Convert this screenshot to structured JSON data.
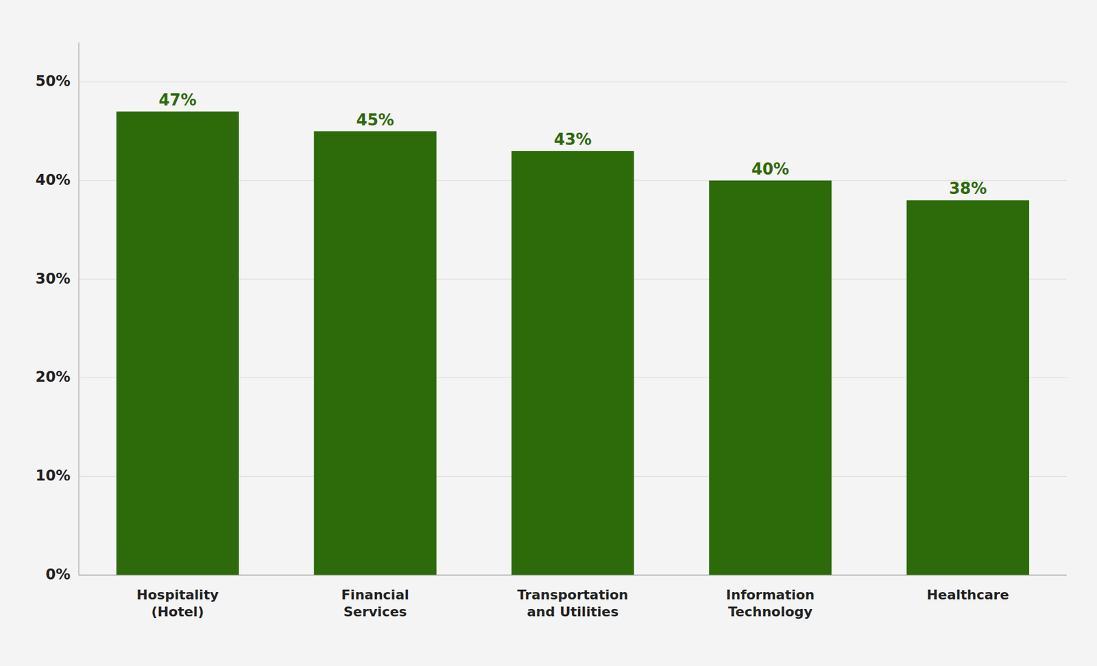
{
  "chart_data": {
    "type": "bar",
    "categories": [
      "Hospitality\n(Hotel)",
      "Financial\nServices",
      "Transportation\nand Utilities",
      "Information\nTechnology",
      "Healthcare"
    ],
    "values": [
      47,
      45,
      43,
      40,
      38
    ],
    "value_labels": [
      "47%",
      "45%",
      "43%",
      "40%",
      "38%"
    ],
    "data_labels": true,
    "color": "#2d6a0a",
    "ylim": [
      0,
      54
    ],
    "yticks": [
      {
        "value": 0,
        "label": "0%"
      },
      {
        "value": 10,
        "label": "10%"
      },
      {
        "value": 20,
        "label": "20%"
      },
      {
        "value": 30,
        "label": "30%"
      },
      {
        "value": 40,
        "label": "40%"
      },
      {
        "value": 50,
        "label": "50%"
      }
    ],
    "grid": true
  }
}
